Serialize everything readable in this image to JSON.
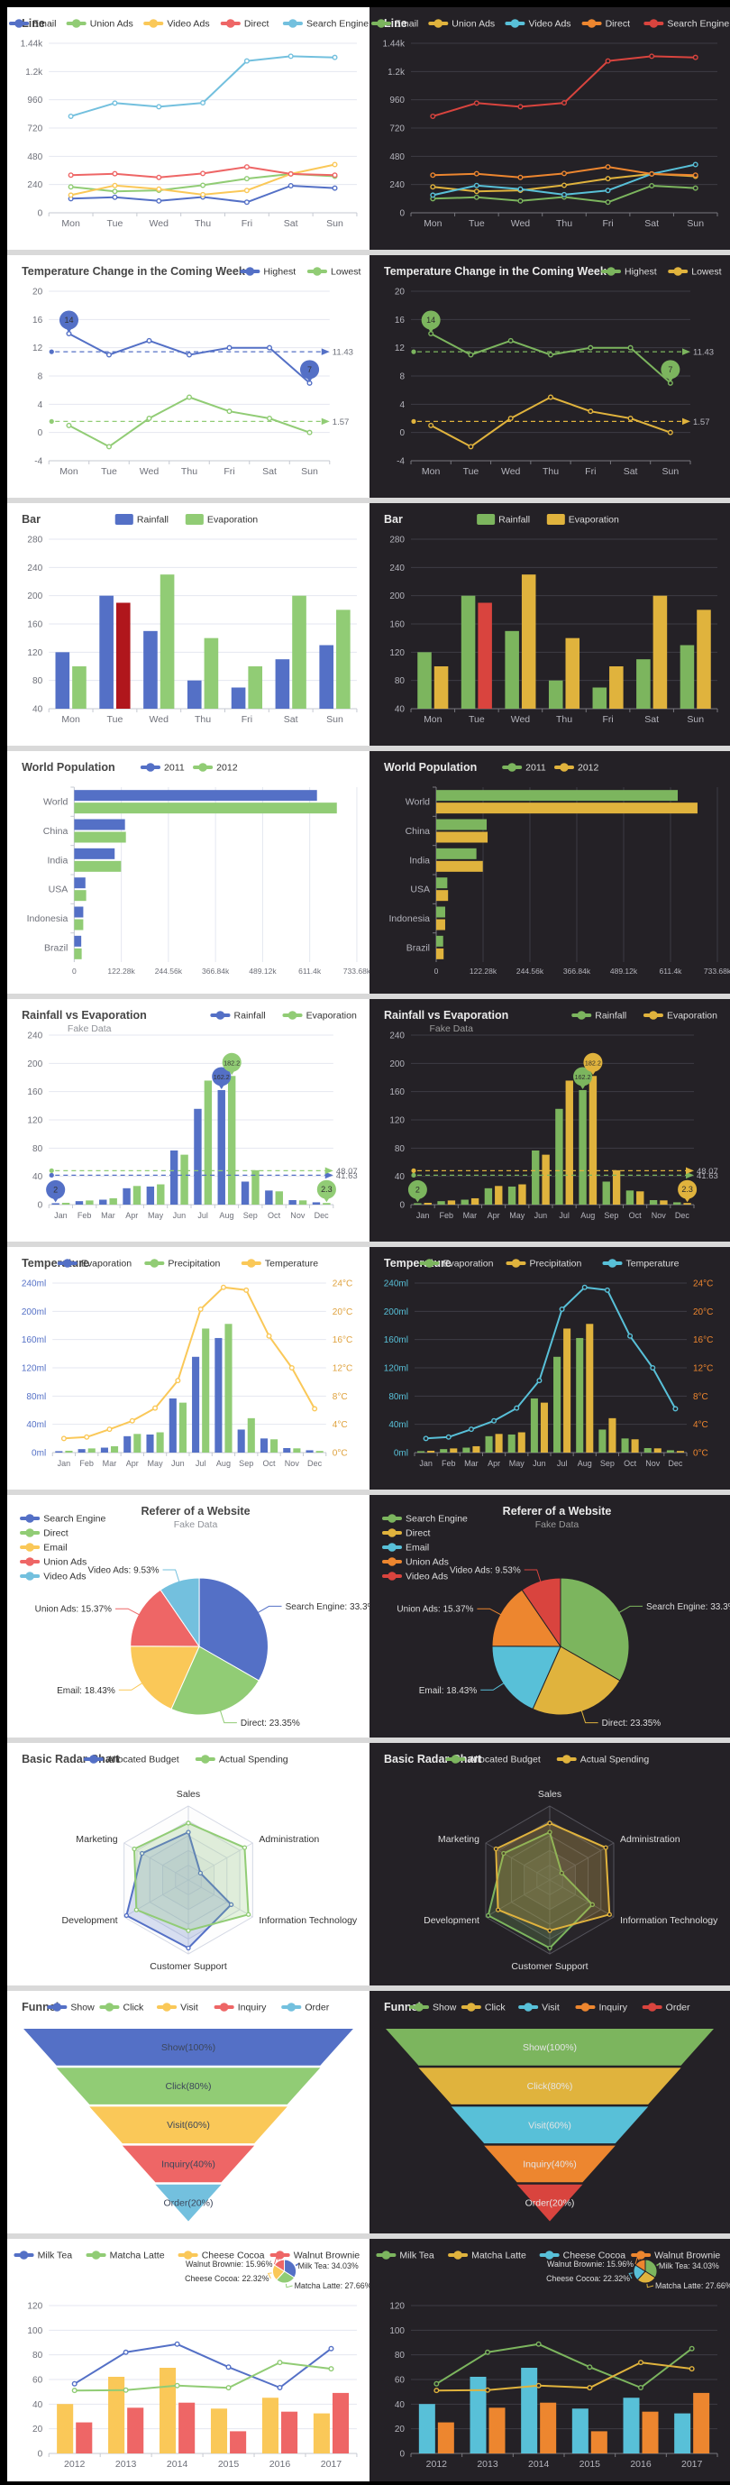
{
  "page": {
    "bg": "#000000",
    "gap_color": "#d9d9d9"
  },
  "themes": {
    "light": {
      "bg": "#ffffff",
      "title": "#464646",
      "legend_text": "#333333",
      "axis_text": "#6E7079",
      "sub_text": "#909399",
      "grid": "#e4e7f0",
      "axis_line": "#c6cad2",
      "highlight": "#b0161c",
      "palette": [
        "#5470c6",
        "#91cc75",
        "#fac858",
        "#ee6666",
        "#73c0de"
      ],
      "radar_line": "#d4d8e4",
      "funnel_text": "#3c465a",
      "mark_text": "#333333"
    },
    "dark": {
      "bg": "#242126",
      "title": "#ebebeb",
      "legend_text": "#dddddd",
      "axis_text": "#b4b4bc",
      "sub_text": "#9a9a9a",
      "grid": "#3d3c44",
      "axis_line": "#77777e",
      "highlight": "#d9443e",
      "palette": [
        "#7cb55e",
        "#e0b33d",
        "#58c0d8",
        "#ed862f",
        "#d9443e"
      ],
      "radar_line": "#55545c",
      "funnel_text": "#e4e4e4",
      "mark_text": "#2c2c2c"
    }
  },
  "chart_data": [
    {
      "key": "line",
      "type": "line",
      "title": "Line",
      "legend": {
        "pos": "center",
        "icon": "pill",
        "items": [
          "Email",
          "Union Ads",
          "Video Ads",
          "Direct",
          "Search Engine"
        ]
      },
      "categories": [
        "Mon",
        "Tue",
        "Wed",
        "Thu",
        "Fri",
        "Sat",
        "Sun"
      ],
      "y": {
        "min": 0,
        "max": 1440,
        "ticks": [
          {
            "v": 0,
            "t": "0"
          },
          {
            "v": 240,
            "t": "240"
          },
          {
            "v": 480,
            "t": "480"
          },
          {
            "v": 720,
            "t": "720"
          },
          {
            "v": 960,
            "t": "960"
          },
          {
            "v": 1200,
            "t": "1.2k"
          },
          {
            "v": 1440,
            "t": "1.44k"
          }
        ]
      },
      "series": [
        {
          "name": "Email",
          "kind": "line",
          "values": [
            120,
            132,
            101,
            134,
            90,
            230,
            210
          ]
        },
        {
          "name": "Union Ads",
          "kind": "line",
          "values": [
            220,
            182,
            191,
            234,
            290,
            330,
            310
          ]
        },
        {
          "name": "Video Ads",
          "kind": "line",
          "values": [
            150,
            232,
            201,
            154,
            190,
            330,
            410
          ]
        },
        {
          "name": "Direct",
          "kind": "line",
          "values": [
            320,
            332,
            301,
            334,
            390,
            330,
            320
          ]
        },
        {
          "name": "Search Engine",
          "kind": "line",
          "values": [
            820,
            932,
            901,
            934,
            1290,
            1330,
            1320
          ]
        }
      ]
    },
    {
      "key": "temp-week",
      "type": "line",
      "title": "Temperature Change in the Coming Week",
      "legend": {
        "pos": "right",
        "icon": "pill",
        "items": [
          "Highest",
          "Lowest"
        ]
      },
      "categories": [
        "Mon",
        "Tue",
        "Wed",
        "Thu",
        "Fri",
        "Sat",
        "Sun"
      ],
      "pad": {
        "r": 356
      },
      "y": {
        "min": -4,
        "max": 20,
        "ticks": [
          {
            "v": -4,
            "t": "-4"
          },
          {
            "v": 0,
            "t": "0"
          },
          {
            "v": 4,
            "t": "4"
          },
          {
            "v": 8,
            "t": "8"
          },
          {
            "v": 12,
            "t": "12"
          },
          {
            "v": 16,
            "t": "16"
          },
          {
            "v": 20,
            "t": "20"
          }
        ]
      },
      "series": [
        {
          "name": "Highest",
          "kind": "line",
          "values": [
            14,
            11,
            13,
            11,
            12,
            12,
            7
          ],
          "markPoints": [
            {
              "i": 0,
              "label": "14"
            },
            {
              "i": 6,
              "label": "7"
            }
          ],
          "markLine": {
            "v": 11.43,
            "label": "11.43"
          }
        },
        {
          "name": "Lowest",
          "kind": "line",
          "values": [
            1,
            -2,
            2,
            5,
            3,
            2,
            0
          ],
          "markLine": {
            "v": 1.57,
            "label": "1.57"
          }
        }
      ]
    },
    {
      "key": "bar",
      "type": "bar",
      "title": "Bar",
      "legend": {
        "pos": "center",
        "icon": "rect",
        "items": [
          "Rainfall",
          "Evaporation"
        ]
      },
      "categories": [
        "Mon",
        "Tue",
        "Wed",
        "Thu",
        "Fri",
        "Sat",
        "Sun"
      ],
      "y": {
        "min": 40,
        "max": 280,
        "ticks": [
          {
            "v": 40,
            "t": "40"
          },
          {
            "v": 80,
            "t": "80"
          },
          {
            "v": 120,
            "t": "120"
          },
          {
            "v": 160,
            "t": "160"
          },
          {
            "v": 200,
            "t": "200"
          },
          {
            "v": 240,
            "t": "240"
          },
          {
            "v": 280,
            "t": "280"
          }
        ]
      },
      "series": [
        {
          "name": "Rainfall",
          "kind": "bar",
          "values": [
            120,
            200,
            150,
            80,
            70,
            110,
            130
          ]
        },
        {
          "name": "Evaporation",
          "kind": "bar",
          "values": [
            100,
            190,
            230,
            140,
            100,
            200,
            180
          ],
          "item_highlight": [
            1
          ]
        }
      ]
    },
    {
      "key": "world-population",
      "type": "bar",
      "orientation": "horizontal",
      "title": "World Population",
      "legend": {
        "pos": "center",
        "icon": "pill",
        "items": [
          "2011",
          "2012"
        ]
      },
      "categories": [
        "World",
        "China",
        "India",
        "USA",
        "Indonesia",
        "Brazil"
      ],
      "x": {
        "max": 733680,
        "ticks": [
          {
            "v": 0,
            "t": "0"
          },
          {
            "v": 122280,
            "t": "122.28k"
          },
          {
            "v": 244560,
            "t": "244.56k"
          },
          {
            "v": 366840,
            "t": "366.84k"
          },
          {
            "v": 489120,
            "t": "489.12k"
          },
          {
            "v": 611400,
            "t": "611.4k"
          },
          {
            "v": 733680,
            "t": "733.68k"
          }
        ]
      },
      "series": [
        {
          "name": "2011",
          "values": [
            630230,
            131744,
            104970,
            29034,
            23489,
            18203
          ]
        },
        {
          "name": "2012",
          "values": [
            681807,
            134141,
            121594,
            31000,
            23438,
            19325
          ]
        }
      ]
    },
    {
      "key": "rain-evap",
      "type": "bar",
      "title": "Rainfall vs Evaporation",
      "subtitle": "Fake Data",
      "legend": {
        "pos": "right",
        "icon": "pill",
        "items": [
          "Rainfall",
          "Evaporation"
        ]
      },
      "categories": [
        "Jan",
        "Feb",
        "Mar",
        "Apr",
        "May",
        "Jun",
        "Jul",
        "Aug",
        "Sep",
        "Oct",
        "Nov",
        "Dec"
      ],
      "pad": {
        "r": 360
      },
      "y": {
        "min": 0,
        "max": 240,
        "ticks": [
          {
            "v": 0,
            "t": "0"
          },
          {
            "v": 40,
            "t": "40"
          },
          {
            "v": 80,
            "t": "80"
          },
          {
            "v": 120,
            "t": "120"
          },
          {
            "v": 160,
            "t": "160"
          },
          {
            "v": 200,
            "t": "200"
          },
          {
            "v": 240,
            "t": "240"
          }
        ]
      },
      "series": [
        {
          "name": "Rainfall",
          "kind": "bar",
          "values": [
            2.0,
            4.9,
            7.0,
            23.2,
            25.6,
            76.7,
            135.6,
            162.2,
            32.6,
            20.0,
            6.4,
            3.3
          ],
          "markPoints": [
            {
              "i": 7,
              "label": "162.2"
            },
            {
              "i": 0,
              "label": "2"
            }
          ],
          "markLine": {
            "v": 41.63,
            "label": "41.63"
          }
        },
        {
          "name": "Evaporation",
          "kind": "bar",
          "values": [
            2.6,
            5.9,
            9.0,
            26.4,
            28.7,
            70.7,
            175.6,
            182.2,
            48.7,
            18.8,
            6.0,
            2.3
          ],
          "markPoints": [
            {
              "i": 7,
              "label": "182.2"
            },
            {
              "i": 11,
              "label": "2.3"
            }
          ],
          "markLine": {
            "v": 48.07,
            "label": "48.07"
          }
        }
      ]
    },
    {
      "key": "temperature-mix",
      "type": "mixed",
      "title": "Temperature",
      "legend": {
        "pos": "center",
        "icon": "pill",
        "items": [
          "Evaporation",
          "Precipitation",
          "Temperature"
        ]
      },
      "categories": [
        "Jan",
        "Feb",
        "Mar",
        "Apr",
        "May",
        "Jun",
        "Jul",
        "Aug",
        "Sep",
        "Oct",
        "Nov",
        "Dec"
      ],
      "pad": {
        "l": 50,
        "r": 352
      },
      "y": {
        "min": 0,
        "max": 240,
        "color": {
          "light": "#5470c6",
          "dark": "#58c0d8"
        },
        "ticks": [
          {
            "v": 0,
            "t": "0ml"
          },
          {
            "v": 40,
            "t": "40ml"
          },
          {
            "v": 80,
            "t": "80ml"
          },
          {
            "v": 120,
            "t": "120ml"
          },
          {
            "v": 160,
            "t": "160ml"
          },
          {
            "v": 200,
            "t": "200ml"
          },
          {
            "v": 240,
            "t": "240ml"
          }
        ]
      },
      "y2": {
        "min": 0,
        "max": 24,
        "color": {
          "light": "#dfa13c",
          "dark": "#ed862f"
        },
        "ticks": [
          {
            "v": 0,
            "t": "0°C"
          },
          {
            "v": 4,
            "t": "4°C"
          },
          {
            "v": 8,
            "t": "8°C"
          },
          {
            "v": 12,
            "t": "12°C"
          },
          {
            "v": 16,
            "t": "16°C"
          },
          {
            "v": 20,
            "t": "20°C"
          },
          {
            "v": 24,
            "t": "24°C"
          }
        ]
      },
      "series": [
        {
          "name": "Evaporation",
          "kind": "bar",
          "values": [
            2.0,
            4.9,
            7.0,
            23.2,
            25.6,
            76.7,
            135.6,
            162.2,
            32.6,
            20.0,
            6.4,
            3.3
          ]
        },
        {
          "name": "Precipitation",
          "kind": "bar",
          "values": [
            2.6,
            5.9,
            9.0,
            26.4,
            28.7,
            70.7,
            175.6,
            182.2,
            48.7,
            18.8,
            6.0,
            2.3
          ]
        },
        {
          "name": "Temperature",
          "kind": "line",
          "axis": "y2",
          "values": [
            2.0,
            2.2,
            3.3,
            4.5,
            6.3,
            10.2,
            20.3,
            23.4,
            23.0,
            16.5,
            12.0,
            6.2
          ]
        }
      ]
    },
    {
      "key": "referer-pie",
      "type": "pie",
      "title": "Referer of a Website",
      "subtitle": "Fake Data",
      "legend": {
        "pos": "left-column",
        "icon": "pill",
        "items": [
          "Search Engine",
          "Direct",
          "Email",
          "Union Ads",
          "Video Ads"
        ]
      },
      "slices": [
        {
          "name": "Search Engine",
          "value": 1048,
          "label": "Search Engine: 33.3%"
        },
        {
          "name": "Direct",
          "value": 735,
          "label": "Direct: 23.35%"
        },
        {
          "name": "Email",
          "value": 580,
          "label": "Email: 18.43%"
        },
        {
          "name": "Union Ads",
          "value": 484,
          "label": "Union Ads: 15.37%"
        },
        {
          "name": "Video Ads",
          "value": 300,
          "label": "Video Ads: 9.53%"
        }
      ]
    },
    {
      "key": "radar",
      "type": "radar",
      "title": "Basic Radar Chart",
      "legend": {
        "pos": "center",
        "icon": "pill",
        "items": [
          "Allocated Budget",
          "Actual Spending"
        ]
      },
      "indicators": [
        {
          "name": "Sales",
          "max": 6500
        },
        {
          "name": "Administration",
          "max": 16000
        },
        {
          "name": "Information Technology",
          "max": 30000
        },
        {
          "name": "Customer Support",
          "max": 38000
        },
        {
          "name": "Development",
          "max": 52000
        },
        {
          "name": "Marketing",
          "max": 25000
        }
      ],
      "series": [
        {
          "name": "Allocated Budget",
          "values": [
            4200,
            3000,
            20000,
            35000,
            50000,
            18000
          ]
        },
        {
          "name": "Actual Spending",
          "values": [
            5000,
            14000,
            28000,
            26000,
            42000,
            21000
          ]
        }
      ]
    },
    {
      "key": "funnel",
      "type": "funnel",
      "title": "Funnel",
      "legend": {
        "pos": "center",
        "icon": "pill",
        "items": [
          "Show",
          "Click",
          "Visit",
          "Inquiry",
          "Order"
        ]
      },
      "steps": [
        {
          "name": "Show",
          "value": 100,
          "label": "Show(100%)"
        },
        {
          "name": "Click",
          "value": 80,
          "label": "Click(80%)"
        },
        {
          "name": "Visit",
          "value": 60,
          "label": "Visit(60%)"
        },
        {
          "name": "Inquiry",
          "value": 40,
          "label": "Inquiry(40%)"
        },
        {
          "name": "Order",
          "value": 20,
          "label": "Order(20%)"
        }
      ]
    },
    {
      "key": "beverage-mix",
      "type": "mixed",
      "title": "",
      "legend": {
        "pos": "center",
        "icon": "pill",
        "items": [
          "Milk Tea",
          "Matcha Latte",
          "Cheese Cocoa",
          "Walnut Brownie"
        ]
      },
      "categories": [
        "2012",
        "2013",
        "2014",
        "2015",
        "2016",
        "2017"
      ],
      "pad": {
        "t": 74,
        "b": 238
      },
      "y": {
        "min": 0,
        "max": 120,
        "ticks": [
          {
            "v": 0,
            "t": "0"
          },
          {
            "v": 20,
            "t": "20"
          },
          {
            "v": 40,
            "t": "40"
          },
          {
            "v": 60,
            "t": "60"
          },
          {
            "v": 80,
            "t": "80"
          },
          {
            "v": 100,
            "t": "100"
          },
          {
            "v": 120,
            "t": "120"
          }
        ]
      },
      "series": [
        {
          "name": "Milk Tea",
          "kind": "line",
          "values": [
            56.5,
            82.1,
            88.7,
            70.1,
            53.4,
            85.1
          ]
        },
        {
          "name": "Matcha Latte",
          "kind": "line",
          "values": [
            51.1,
            51.4,
            55.1,
            53.3,
            73.8,
            68.7
          ]
        },
        {
          "name": "Cheese Cocoa",
          "kind": "bar",
          "values": [
            40.1,
            62.2,
            69.5,
            36.4,
            45.2,
            32.5
          ]
        },
        {
          "name": "Walnut Brownie",
          "kind": "bar",
          "values": [
            25.2,
            37.1,
            41.2,
            18,
            33.9,
            49.1
          ]
        }
      ],
      "mini_pie": {
        "values": [
          34.03,
          27.66,
          22.32,
          15.96
        ],
        "labels": [
          {
            "text": "Walnut Brownie: 15.96%",
            "slice": 3,
            "side": "left",
            "x": 293,
            "y": 31
          },
          {
            "text": "Cheese Cocoa: 22.32%",
            "slice": 2,
            "side": "left",
            "x": 289,
            "y": 47
          },
          {
            "text": "Milk Tea: 34.03%",
            "slice": 0,
            "side": "right",
            "x": 321,
            "y": 33
          },
          {
            "text": "Matcha Latte: 27.66%",
            "slice": 1,
            "side": "right",
            "x": 317,
            "y": 55
          }
        ]
      }
    }
  ]
}
